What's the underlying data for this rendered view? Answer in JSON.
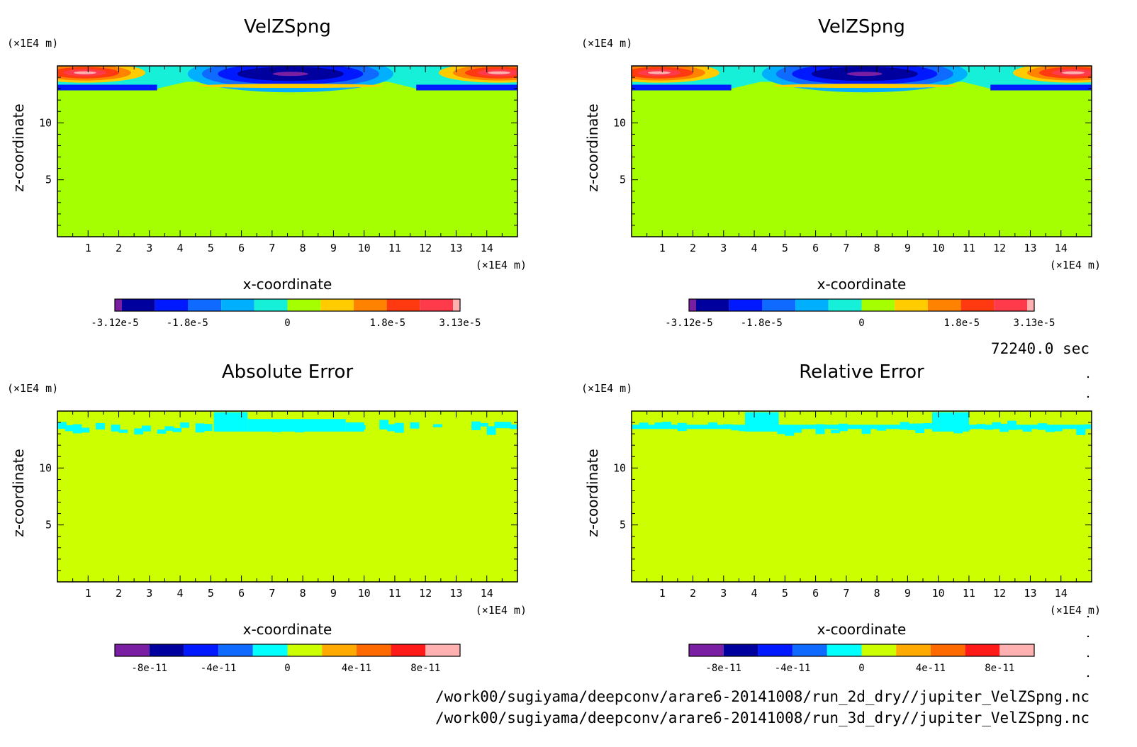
{
  "chart_data": [
    {
      "type": "heatmap",
      "title": "VelZSpng",
      "xlabel": "x-coordinate",
      "ylabel": "z-coordinate",
      "x_unit": "(×1E4 m)",
      "y_unit": "(×1E4 m)",
      "xlim": [
        0,
        15
      ],
      "ylim": [
        0,
        15
      ],
      "x_ticks": [
        "1",
        "2",
        "3",
        "4",
        "5",
        "6",
        "7",
        "8",
        "9",
        "10",
        "11",
        "12",
        "13",
        "14"
      ],
      "y_ticks": [
        "5",
        "10"
      ],
      "field": "sponge",
      "colorbar": {
        "colors": [
          "#7a1fa2",
          "#00009e",
          "#0019ff",
          "#0f6bff",
          "#00b0ff",
          "#16f0d8",
          "#a6ff00",
          "#ffcc00",
          "#ff8200",
          "#ff3a10",
          "#ff3a4a",
          "#ffb0b0"
        ],
        "labels": [
          "-3.12e-5",
          "-1.8e-5",
          "0",
          "1.8e-5",
          "3.13e-5"
        ]
      }
    },
    {
      "type": "heatmap",
      "title": "VelZSpng",
      "xlabel": "x-coordinate",
      "ylabel": "z-coordinate",
      "x_unit": "(×1E4 m)",
      "y_unit": "(×1E4 m)",
      "xlim": [
        0,
        15
      ],
      "ylim": [
        0,
        15
      ],
      "x_ticks": [
        "1",
        "2",
        "3",
        "4",
        "5",
        "6",
        "7",
        "8",
        "9",
        "10",
        "11",
        "12",
        "13",
        "14"
      ],
      "y_ticks": [
        "5",
        "10"
      ],
      "field": "sponge",
      "colorbar": {
        "colors": [
          "#7a1fa2",
          "#00009e",
          "#0019ff",
          "#0f6bff",
          "#00b0ff",
          "#16f0d8",
          "#a6ff00",
          "#ffcc00",
          "#ff8200",
          "#ff3a10",
          "#ff3a4a",
          "#ffb0b0"
        ],
        "labels": [
          "-3.12e-5",
          "-1.8e-5",
          "0",
          "1.8e-5",
          "3.13e-5"
        ]
      }
    },
    {
      "type": "heatmap",
      "title": "Absolute Error",
      "xlabel": "x-coordinate",
      "ylabel": "z-coordinate",
      "x_unit": "(×1E4 m)",
      "y_unit": "(×1E4 m)",
      "xlim": [
        0,
        15
      ],
      "ylim": [
        0,
        15
      ],
      "x_ticks": [
        "1",
        "2",
        "3",
        "4",
        "5",
        "6",
        "7",
        "8",
        "9",
        "10",
        "11",
        "12",
        "13",
        "14"
      ],
      "y_ticks": [
        "5",
        "10"
      ],
      "field": "error-abs",
      "colorbar": {
        "colors": [
          "#7a1fa2",
          "#00009e",
          "#0019ff",
          "#0f6bff",
          "#00ffff",
          "#ccff00",
          "#ffaa00",
          "#ff6a00",
          "#ff1a1a",
          "#ffb0b0"
        ],
        "labels": [
          "-8e-11",
          "-4e-11",
          "0",
          "4e-11",
          "8e-11"
        ]
      }
    },
    {
      "type": "heatmap",
      "title": "Relative Error",
      "xlabel": "x-coordinate",
      "ylabel": "z-coordinate",
      "x_unit": "(×1E4 m)",
      "y_unit": "(×1E4 m)",
      "xlim": [
        0,
        15
      ],
      "ylim": [
        0,
        15
      ],
      "x_ticks": [
        "1",
        "2",
        "3",
        "4",
        "5",
        "6",
        "7",
        "8",
        "9",
        "10",
        "11",
        "12",
        "13",
        "14"
      ],
      "y_ticks": [
        "5",
        "10"
      ],
      "field": "error-rel",
      "colorbar": {
        "colors": [
          "#7a1fa2",
          "#00009e",
          "#0019ff",
          "#0f6bff",
          "#00ffff",
          "#ccff00",
          "#ffaa00",
          "#ff6a00",
          "#ff1a1a",
          "#ffb0b0"
        ],
        "labels": [
          "-8e-11",
          "-4e-11",
          "0",
          "4e-11",
          "8e-11"
        ]
      }
    }
  ],
  "time_label": "72240.0 sec",
  "files": [
    "/work00/sugiyama/deepconv/arare6-20141008/run_2d_dry//jupiter_VelZSpng.nc",
    "/work00/sugiyama/deepconv/arare6-20141008/run_3d_dry//jupiter_VelZSpng.nc"
  ]
}
